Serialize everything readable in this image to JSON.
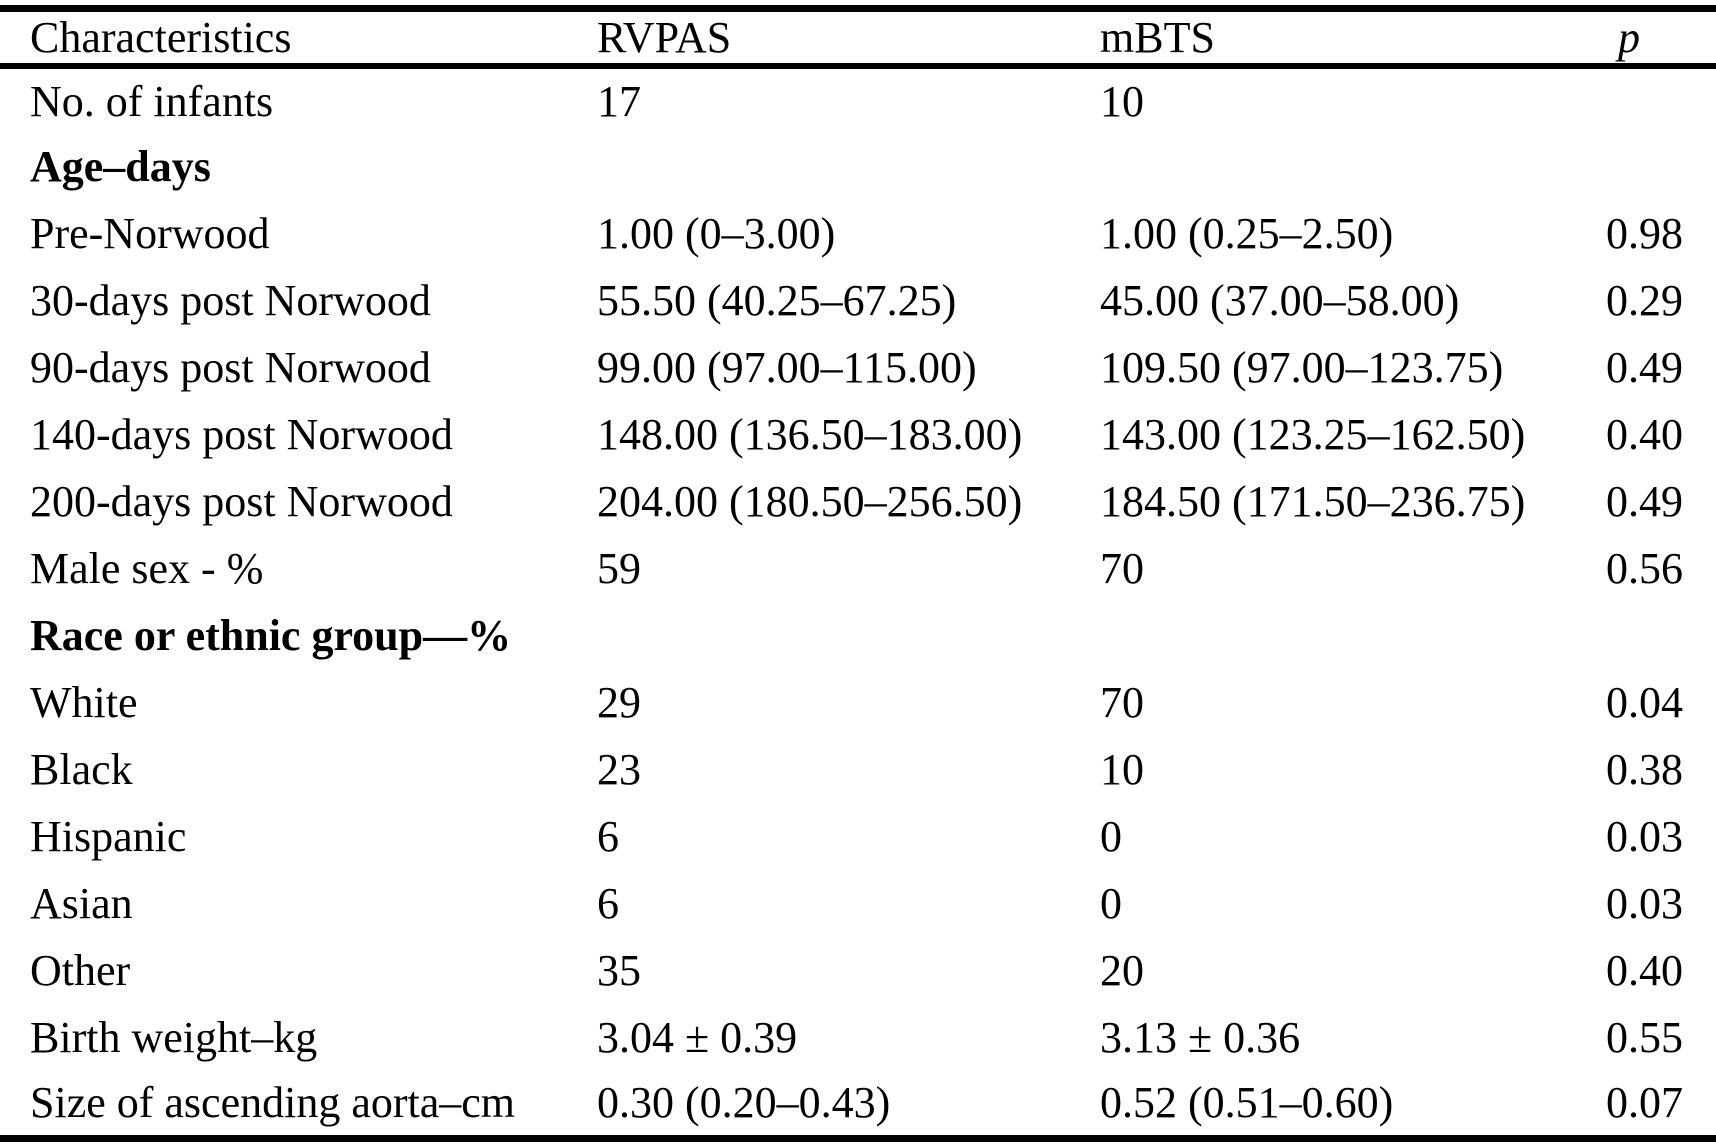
{
  "page": {
    "background_color": "#ffffff",
    "text_color": "#000000",
    "rule_color": "#000000"
  },
  "table": {
    "columns": [
      {
        "label": "Characteristics"
      },
      {
        "label": "RVPAS"
      },
      {
        "label": "mBTS"
      },
      {
        "label": "p",
        "italic": true
      }
    ],
    "rows": [
      {
        "label": "No. of infants",
        "rvpas": "17",
        "mbts": "10",
        "p": "",
        "section": false
      },
      {
        "label": "Age–days",
        "rvpas": "",
        "mbts": "",
        "p": "",
        "section": true
      },
      {
        "label": "Pre-Norwood",
        "rvpas": "1.00 (0–3.00)",
        "mbts": "1.00 (0.25–2.50)",
        "p": "0.98",
        "section": false
      },
      {
        "label": "30-days post Norwood",
        "rvpas": "55.50 (40.25–67.25)",
        "mbts": "45.00 (37.00–58.00)",
        "p": "0.29",
        "section": false
      },
      {
        "label": "90-days post Norwood",
        "rvpas": "99.00 (97.00–115.00)",
        "mbts": "109.50 (97.00–123.75)",
        "p": "0.49",
        "section": false
      },
      {
        "label": "140-days post Norwood",
        "rvpas": "148.00 (136.50–183.00)",
        "mbts": "143.00 (123.25–162.50)",
        "p": "0.40",
        "section": false
      },
      {
        "label": "200-days post Norwood",
        "rvpas": "204.00 (180.50–256.50)",
        "mbts": "184.50 (171.50–236.75)",
        "p": "0.49",
        "section": false
      },
      {
        "label": "Male sex - %",
        "rvpas": "59",
        "mbts": "70",
        "p": "0.56",
        "section": false
      },
      {
        "label": "Race or ethnic group—%",
        "rvpas": "",
        "mbts": "",
        "p": "",
        "section": true
      },
      {
        "label": "White",
        "rvpas": "29",
        "mbts": "70",
        "p": "0.04",
        "section": false
      },
      {
        "label": "Black",
        "rvpas": "23",
        "mbts": "10",
        "p": "0.38",
        "section": false
      },
      {
        "label": "Hispanic",
        "rvpas": "6",
        "mbts": "0",
        "p": "0.03",
        "section": false
      },
      {
        "label": "Asian",
        "rvpas": "6",
        "mbts": "0",
        "p": "0.03",
        "section": false
      },
      {
        "label": "Other",
        "rvpas": "35",
        "mbts": "20",
        "p": "0.40",
        "section": false
      },
      {
        "label": "Birth weight–kg",
        "rvpas": "3.04 ± 0.39",
        "mbts": "3.13 ± 0.36",
        "p": "0.55",
        "section": false
      },
      {
        "label": "Size of ascending aorta–cm",
        "rvpas": "0.30 (0.20–0.43)",
        "mbts": "0.52 (0.51–0.60)",
        "p": "0.07",
        "section": false
      }
    ]
  }
}
